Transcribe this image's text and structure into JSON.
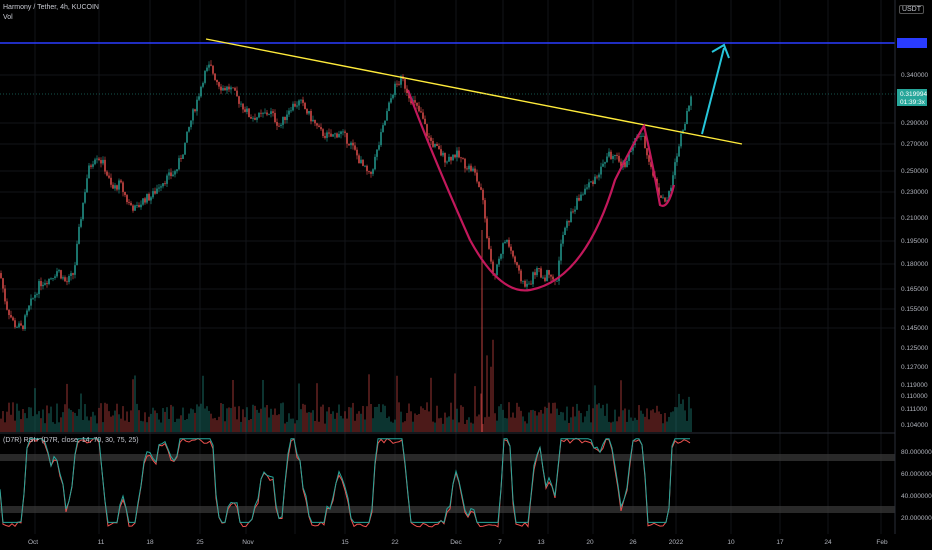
{
  "header": {
    "title": "Harmony / Tether, 4h, KUCOIN",
    "vol_label": "Vol",
    "currency": "USDT"
  },
  "indicator": {
    "label": "(D7R) RSI+ (D7R, close, 14, 70, 30, 75, 25)"
  },
  "chart_data": {
    "type": "candlestick",
    "symbol": "ONEUSDT",
    "timeframe": "4h",
    "price_axis_labels": [
      "0.340000",
      "0.290000",
      "0.270000",
      "0.250000",
      "0.230000",
      "0.210000",
      "0.195000",
      "0.180000",
      "0.165000",
      "0.155000",
      "0.145000"
    ],
    "volume_axis_labels": [
      "0.125000",
      "0.127000",
      "0.119000",
      "0.110000",
      "0.111000",
      "0.104000"
    ],
    "rsi_axis_labels": [
      "80.000000",
      "60.000000",
      "40.000000",
      "20.000000"
    ],
    "x_tick_labels": [
      "Oct",
      "11",
      "18",
      "25",
      "Nov",
      "15",
      "22",
      "Dec",
      "7",
      "13",
      "20",
      "26",
      "2022",
      "10",
      "17",
      "24",
      "Feb"
    ],
    "current_price_label": "0.319994",
    "current_price_sublabel": "01:39:3x",
    "resistance_line_color": "#2a3cff",
    "trendline_color": "#ffeb3b",
    "cup_color": "#c2185b",
    "arrow_color": "#26c6da",
    "bull_color": "#26a69a",
    "bear_color": "#ef5350",
    "price_path": [
      [
        0,
        0.178
      ],
      [
        6,
        0.16
      ],
      [
        14,
        0.15
      ],
      [
        22,
        0.148
      ],
      [
        30,
        0.16
      ],
      [
        40,
        0.172
      ],
      [
        50,
        0.175
      ],
      [
        58,
        0.18
      ],
      [
        66,
        0.172
      ],
      [
        74,
        0.178
      ],
      [
        80,
        0.21
      ],
      [
        88,
        0.25
      ],
      [
        96,
        0.265
      ],
      [
        104,
        0.255
      ],
      [
        112,
        0.235
      ],
      [
        120,
        0.24
      ],
      [
        128,
        0.225
      ],
      [
        136,
        0.22
      ],
      [
        144,
        0.228
      ],
      [
        152,
        0.23
      ],
      [
        160,
        0.24
      ],
      [
        168,
        0.245
      ],
      [
        176,
        0.25
      ],
      [
        184,
        0.27
      ],
      [
        192,
        0.3
      ],
      [
        198,
        0.32
      ],
      [
        204,
        0.345
      ],
      [
        210,
        0.355
      ],
      [
        216,
        0.34
      ],
      [
        222,
        0.33
      ],
      [
        230,
        0.33
      ],
      [
        240,
        0.315
      ],
      [
        250,
        0.3
      ],
      [
        260,
        0.3
      ],
      [
        270,
        0.305
      ],
      [
        280,
        0.29
      ],
      [
        290,
        0.31
      ],
      [
        300,
        0.315
      ],
      [
        310,
        0.3
      ],
      [
        320,
        0.285
      ],
      [
        330,
        0.28
      ],
      [
        340,
        0.285
      ],
      [
        350,
        0.275
      ],
      [
        356,
        0.265
      ],
      [
        362,
        0.255
      ],
      [
        370,
        0.245
      ],
      [
        378,
        0.27
      ],
      [
        386,
        0.3
      ],
      [
        394,
        0.33
      ],
      [
        402,
        0.34
      ],
      [
        410,
        0.32
      ],
      [
        416,
        0.31
      ],
      [
        422,
        0.3
      ],
      [
        428,
        0.28
      ],
      [
        436,
        0.27
      ],
      [
        446,
        0.26
      ],
      [
        456,
        0.265
      ],
      [
        466,
        0.255
      ],
      [
        474,
        0.25
      ],
      [
        482,
        0.23
      ],
      [
        488,
        0.195
      ],
      [
        494,
        0.175
      ],
      [
        500,
        0.19
      ],
      [
        506,
        0.2
      ],
      [
        512,
        0.19
      ],
      [
        520,
        0.175
      ],
      [
        528,
        0.17
      ],
      [
        536,
        0.18
      ],
      [
        544,
        0.175
      ],
      [
        550,
        0.18
      ],
      [
        556,
        0.17
      ],
      [
        562,
        0.2
      ],
      [
        570,
        0.215
      ],
      [
        580,
        0.23
      ],
      [
        590,
        0.24
      ],
      [
        600,
        0.25
      ],
      [
        608,
        0.265
      ],
      [
        616,
        0.26
      ],
      [
        624,
        0.255
      ],
      [
        632,
        0.27
      ],
      [
        640,
        0.285
      ],
      [
        646,
        0.27
      ],
      [
        652,
        0.25
      ],
      [
        658,
        0.235
      ],
      [
        664,
        0.225
      ],
      [
        670,
        0.232
      ],
      [
        676,
        0.26
      ],
      [
        682,
        0.285
      ],
      [
        688,
        0.305
      ],
      [
        692,
        0.32
      ]
    ]
  }
}
